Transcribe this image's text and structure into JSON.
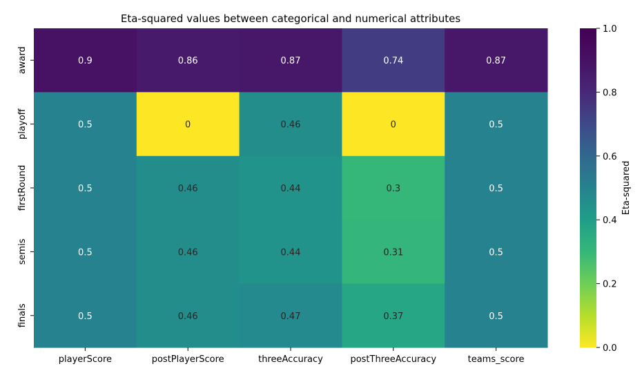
{
  "chart_data": {
    "type": "heatmap",
    "title": "Eta-squared values between categorical and numerical attributes",
    "columns": [
      "playerScore",
      "postPlayerScore",
      "threeAccuracy",
      "postThreeAccuracy",
      "teams_score"
    ],
    "rows": [
      "award",
      "playoff",
      "firstRound",
      "semis",
      "finals"
    ],
    "values": [
      [
        0.9,
        0.86,
        0.87,
        0.74,
        0.87
      ],
      [
        0.5,
        0,
        0.46,
        0,
        0.5
      ],
      [
        0.5,
        0.46,
        0.44,
        0.3,
        0.5
      ],
      [
        0.5,
        0.46,
        0.44,
        0.31,
        0.5
      ],
      [
        0.5,
        0.46,
        0.47,
        0.37,
        0.5
      ]
    ],
    "value_labels": [
      [
        "0.9",
        "0.86",
        "0.87",
        "0.74",
        "0.87"
      ],
      [
        "0.5",
        "0",
        "0.46",
        "0",
        "0.5"
      ],
      [
        "0.5",
        "0.46",
        "0.44",
        "0.3",
        "0.5"
      ],
      [
        "0.5",
        "0.46",
        "0.44",
        "0.31",
        "0.5"
      ],
      [
        "0.5",
        "0.46",
        "0.47",
        "0.37",
        "0.5"
      ]
    ],
    "colormap": "viridis_r",
    "vmin": 0,
    "vmax": 1,
    "colorbar": {
      "label": "Eta-squared",
      "ticks": [
        0.0,
        0.2,
        0.4,
        0.6,
        0.8,
        1.0
      ],
      "tick_labels": [
        "0.0",
        "0.2",
        "0.4",
        "0.6",
        "0.8",
        "1.0"
      ]
    }
  }
}
